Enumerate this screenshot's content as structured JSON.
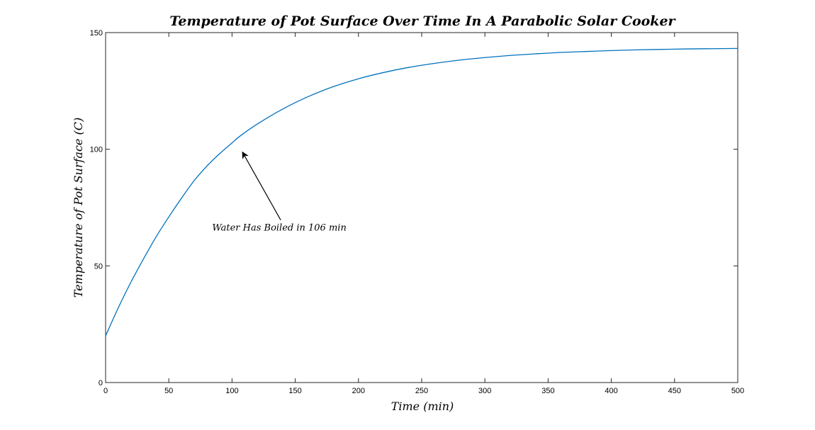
{
  "chart_data": {
    "type": "line",
    "title": "Temperature of Pot Surface Over Time In A Parabolic Solar Cooker",
    "xlabel": "Time (min)",
    "ylabel": "Temperature of Pot Surface (C)",
    "xlim": [
      0,
      500
    ],
    "ylim": [
      0,
      150
    ],
    "xticks": [
      0,
      50,
      100,
      150,
      200,
      250,
      300,
      350,
      400,
      450,
      500
    ],
    "yticks": [
      0,
      50,
      100,
      150
    ],
    "grid": false,
    "series": [
      {
        "color": "#0072BD",
        "x": [
          0,
          10,
          20,
          30,
          40,
          50,
          60,
          70,
          80,
          90,
          100,
          106,
          120,
          140,
          160,
          180,
          200,
          220,
          240,
          260,
          280,
          300,
          320,
          340,
          360,
          380,
          400,
          420,
          440,
          460,
          480,
          500
        ],
        "y": [
          20,
          32,
          43,
          53,
          62.5,
          71,
          79,
          86.5,
          92.7,
          98,
          102.7,
          105.5,
          110.8,
          117.2,
          122.5,
          126.8,
          130.2,
          132.9,
          135.1,
          136.8,
          138.2,
          139.3,
          140.2,
          140.9,
          141.5,
          141.9,
          142.3,
          142.6,
          142.8,
          143,
          143.1,
          143.2
        ]
      }
    ],
    "annotations": [
      {
        "text": "Water Has Boiled in 106 min",
        "x": 106,
        "y": 100
      }
    ]
  }
}
